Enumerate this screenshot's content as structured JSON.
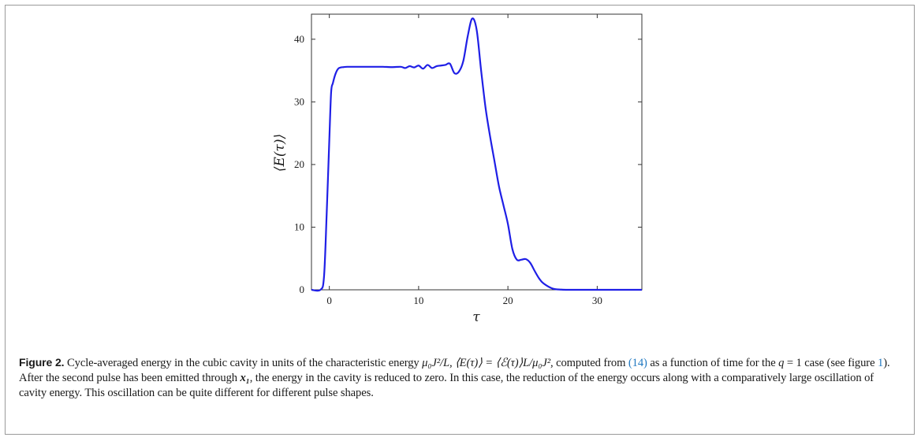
{
  "chart_data": {
    "type": "line",
    "title": "",
    "xlabel": "τ",
    "ylabel": "⟨E(τ)⟩",
    "xlim": [
      -2,
      35
    ],
    "ylim": [
      0,
      44
    ],
    "xticks": [
      0,
      10,
      20,
      30
    ],
    "yticks": [
      0,
      10,
      20,
      30,
      40
    ],
    "grid": false,
    "series": [
      {
        "color": "#1f1fe6",
        "x": [
          -2,
          -1.0,
          -0.6,
          -0.3,
          0.0,
          0.2,
          0.4,
          0.7,
          1.0,
          1.3,
          1.6,
          2,
          3,
          4,
          5,
          6,
          7,
          8,
          8.5,
          9,
          9.5,
          10,
          10.5,
          11,
          11.5,
          12,
          12.5,
          13,
          13.5,
          14,
          14.5,
          15,
          15.5,
          16,
          16.5,
          17,
          17.5,
          18,
          18.5,
          19,
          19.5,
          20,
          20.5,
          21,
          21.5,
          22,
          22.5,
          23,
          23.5,
          24,
          25,
          26,
          27,
          28,
          30,
          35
        ],
        "y": [
          0,
          0,
          2,
          12,
          24,
          31.5,
          33,
          34.5,
          35.3,
          35.5,
          35.55,
          35.6,
          35.6,
          35.6,
          35.6,
          35.6,
          35.55,
          35.6,
          35.4,
          35.7,
          35.5,
          35.8,
          35.3,
          35.9,
          35.4,
          35.7,
          35.8,
          35.9,
          36.1,
          34.6,
          34.8,
          36.5,
          40.5,
          43.3,
          41.5,
          35.0,
          29.0,
          24.5,
          20.5,
          16.5,
          13.5,
          10.5,
          6.5,
          4.8,
          4.8,
          4.9,
          4.3,
          3.0,
          1.8,
          1.0,
          0.2,
          0.03,
          0,
          0,
          0,
          0
        ]
      }
    ]
  },
  "caption": {
    "label": "Figure 2.",
    "seg1": " Cycle-averaged energy in the cubic cavity in units of the characteristic energy ",
    "math1": "μ₀J²/L, ⟨E(τ)⟩ = ⟨ℰ(τ)⟩L/μ₀J²",
    "seg2": ", computed from ",
    "ref1": "(14)",
    "seg3": " as a function of time for the ",
    "math2": "q",
    "seg4": " = 1 case (see figure ",
    "ref2": "1",
    "seg5": "). After the second pulse has been emitted through ",
    "math3": "x₁",
    "seg6": ", the energy in the cavity is reduced to zero. In this case, the reduction of the energy occurs along with a comparatively large oscillation of cavity energy. This oscillation can be quite different for different pulse shapes."
  }
}
